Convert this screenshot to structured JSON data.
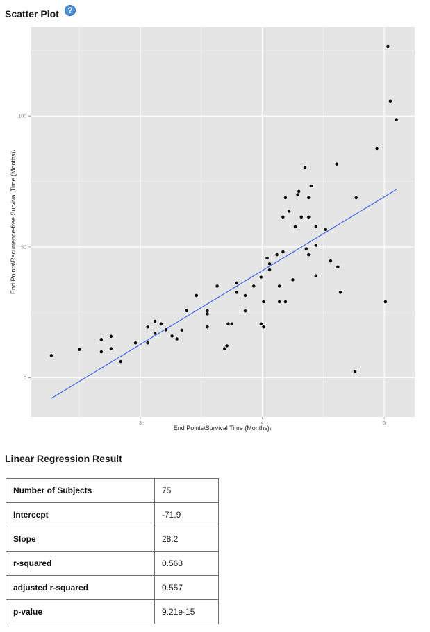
{
  "header": {
    "title": "Scatter Plot",
    "help_icon": "?"
  },
  "regression": {
    "title": "Linear Regression Result",
    "rows": [
      {
        "label": "Number of Subjects",
        "value": "75"
      },
      {
        "label": "Intercept",
        "value": "-71.9"
      },
      {
        "label": "Slope",
        "value": "28.2"
      },
      {
        "label": "r-squared",
        "value": "0.563"
      },
      {
        "label": "adjusted r-squared",
        "value": "0.557"
      },
      {
        "label": "p-value",
        "value": "9.21e-15"
      }
    ]
  },
  "chart_data": {
    "type": "scatter",
    "xlabel": "End Points\\Survival Time (Months)\\",
    "ylabel": "End Points\\Recurrence-free Survival Time (Months)\\",
    "xlim": [
      2.1,
      5.25
    ],
    "ylim": [
      -15,
      134
    ],
    "x_ticks": [
      3,
      4,
      5
    ],
    "x_tick_labels": [
      "3",
      "4",
      "5"
    ],
    "y_ticks": [
      0,
      50,
      100
    ],
    "y_tick_labels": [
      "0",
      "50",
      "100"
    ],
    "grid": true,
    "background": "#e5e5e5",
    "point_color": "#000000",
    "fit_line_color": "#4a6fe3",
    "regression_line": {
      "intercept": -71.9,
      "slope": 28.2,
      "x_range": [
        2.27,
        5.1
      ]
    },
    "points": [
      [
        2.27,
        8.5
      ],
      [
        2.5,
        10.8
      ],
      [
        2.68,
        9.9
      ],
      [
        2.68,
        14.6
      ],
      [
        2.76,
        11.1
      ],
      [
        2.76,
        15.8
      ],
      [
        2.84,
        6.2
      ],
      [
        2.96,
        13.3
      ],
      [
        3.06,
        13.3
      ],
      [
        3.06,
        19.4
      ],
      [
        3.12,
        17
      ],
      [
        3.12,
        21.6
      ],
      [
        3.17,
        20.6
      ],
      [
        3.21,
        18.3
      ],
      [
        3.26,
        15.9
      ],
      [
        3.3,
        14.8
      ],
      [
        3.34,
        18.2
      ],
      [
        3.38,
        25.6
      ],
      [
        3.46,
        31.4
      ],
      [
        3.55,
        24.4
      ],
      [
        3.55,
        25.5
      ],
      [
        3.55,
        19.4
      ],
      [
        3.63,
        35
      ],
      [
        3.69,
        11.1
      ],
      [
        3.71,
        12.2
      ],
      [
        3.72,
        20.6
      ],
      [
        3.75,
        20.6
      ],
      [
        3.79,
        36.2
      ],
      [
        3.79,
        32.6
      ],
      [
        3.86,
        31.4
      ],
      [
        3.86,
        25.5
      ],
      [
        3.93,
        35
      ],
      [
        3.99,
        38.4
      ],
      [
        4.01,
        29
      ],
      [
        4.04,
        45.7
      ],
      [
        4.06,
        43.5
      ],
      [
        4.06,
        41.2
      ],
      [
        4.12,
        47
      ],
      [
        4.14,
        35
      ],
      [
        4.14,
        29
      ],
      [
        4.17,
        61.4
      ],
      [
        4.17,
        48.1
      ],
      [
        4.19,
        68.8
      ],
      [
        4.19,
        29
      ],
      [
        4.22,
        63.6
      ],
      [
        4.25,
        37.4
      ],
      [
        4.27,
        57.7
      ],
      [
        4.29,
        70
      ],
      [
        4.3,
        71.2
      ],
      [
        4.32,
        61.4
      ],
      [
        4.35,
        80.4
      ],
      [
        4.36,
        49.3
      ],
      [
        4.38,
        68.8
      ],
      [
        4.38,
        47
      ],
      [
        4.38,
        61.4
      ],
      [
        4.4,
        73.3
      ],
      [
        4.44,
        50.6
      ],
      [
        4.44,
        38.9
      ],
      [
        4.44,
        57.7
      ],
      [
        4.52,
        56.6
      ],
      [
        4.56,
        44.6
      ],
      [
        4.61,
        81.6
      ],
      [
        4.62,
        42.3
      ],
      [
        4.64,
        32.6
      ],
      [
        4.76,
        2.4
      ],
      [
        4.77,
        68.8
      ],
      [
        4.94,
        87.6
      ],
      [
        5.01,
        29
      ],
      [
        5.03,
        126.6
      ],
      [
        5.05,
        105.7
      ],
      [
        5.1,
        98.6
      ],
      [
        3.99,
        20.6
      ],
      [
        4.01,
        19.4
      ],
      [
        2.68,
        14.6
      ],
      [
        3.46,
        31.4
      ]
    ]
  }
}
